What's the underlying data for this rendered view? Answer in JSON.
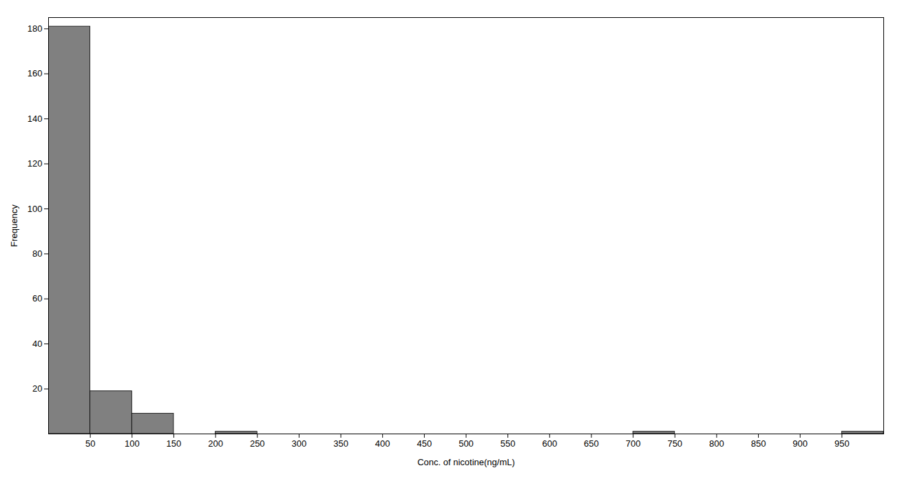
{
  "chart_data": {
    "type": "histogram",
    "bins": [
      0,
      50,
      100,
      150,
      200,
      250,
      300,
      350,
      400,
      450,
      500,
      550,
      600,
      650,
      700,
      750,
      800,
      850,
      900,
      950,
      1000
    ],
    "values": [
      181,
      19,
      9,
      0,
      1,
      0,
      0,
      0,
      0,
      0,
      0,
      0,
      0,
      0,
      1,
      0,
      0,
      0,
      0,
      1
    ],
    "color": "#808080",
    "xlabel": "Conc. of nicotine(ng/mL)",
    "ylabel": "Frequency",
    "xlim": [
      0,
      1000
    ],
    "ylim": [
      0,
      185
    ],
    "xticks": [
      50,
      100,
      150,
      200,
      250,
      300,
      350,
      400,
      450,
      500,
      550,
      600,
      650,
      700,
      750,
      800,
      850,
      900,
      950
    ],
    "yticks": [
      20,
      40,
      60,
      80,
      100,
      120,
      140,
      160,
      180
    ],
    "grid": false
  }
}
